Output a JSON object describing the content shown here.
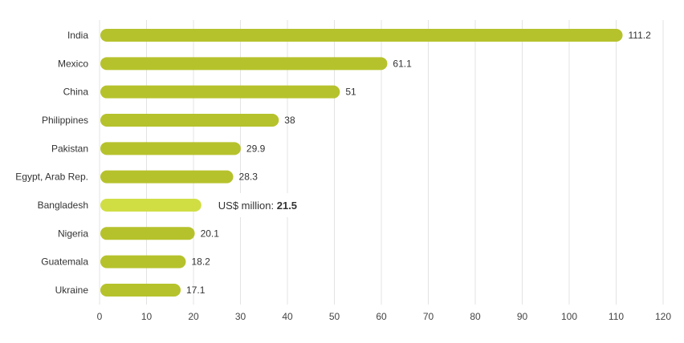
{
  "chart_data": {
    "type": "bar",
    "orientation": "horizontal",
    "categories": [
      "India",
      "Mexico",
      "China",
      "Philippines",
      "Pakistan",
      "Egypt, Arab Rep.",
      "Bangladesh",
      "Nigeria",
      "Guatemala",
      "Ukraine"
    ],
    "values": [
      111.2,
      61.1,
      51,
      38,
      29.9,
      28.3,
      21.5,
      20.1,
      18.2,
      17.1
    ],
    "data_labels": [
      "111.2",
      "61.1",
      "51",
      "38",
      "29.9",
      "28.3",
      "",
      "20.1",
      "18.2",
      "17.1"
    ],
    "xlim": [
      0,
      120
    ],
    "xticks": [
      "0",
      "10",
      "20",
      "30",
      "40",
      "50",
      "60",
      "70",
      "80",
      "90",
      "100",
      "110",
      "120"
    ],
    "grid": "vertical",
    "title": "",
    "xlabel": "",
    "ylabel": "",
    "colors": {
      "bar": "#b6c22c",
      "bar_highlight": "#d0de44",
      "grid": "#e3e3e3",
      "text": "#333333"
    },
    "tooltip": {
      "category": "Bangladesh",
      "label": "US$ million: ",
      "value": "21.5"
    }
  }
}
